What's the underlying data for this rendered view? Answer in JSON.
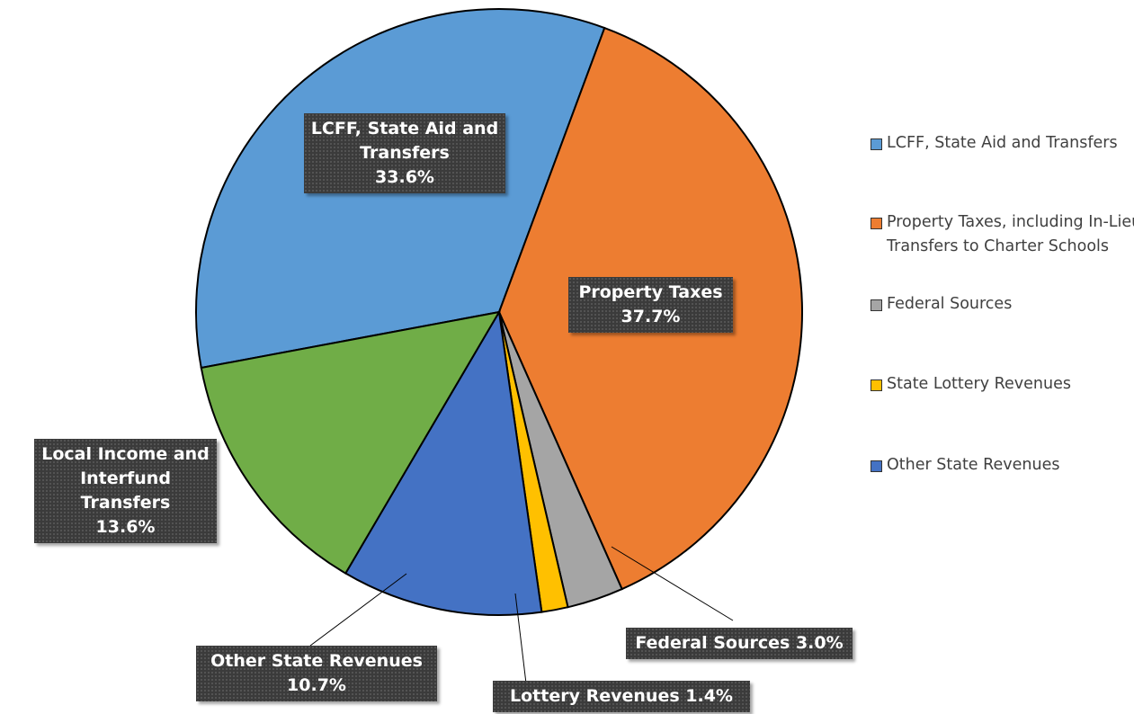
{
  "chart_data": {
    "type": "pie",
    "categories": [
      "LCFF, State Aid and Transfers",
      "Property Taxes, including In-Lieu Transfers to Charter Schools",
      "Federal Sources",
      "State Lottery Revenues",
      "Other State Revenues",
      null
    ],
    "label_names": [
      "LCFF, State Aid and Transfers",
      "Property Taxes",
      "Federal Sources",
      "Lottery Revenues",
      "Other State Revenues",
      "Local Income and Interfund Transfers"
    ],
    "values": [
      33.6,
      37.7,
      3.0,
      1.4,
      10.7,
      13.6
    ],
    "value_labels": [
      "33.6%",
      "37.7%",
      "3.0%",
      "1.4%",
      "10.7%",
      "13.6%"
    ],
    "colors": [
      "#5b9bd5",
      "#ed7d31",
      "#a5a5a5",
      "#ffc000",
      "#4472c4",
      "#70ad47"
    ],
    "legend": "right"
  }
}
